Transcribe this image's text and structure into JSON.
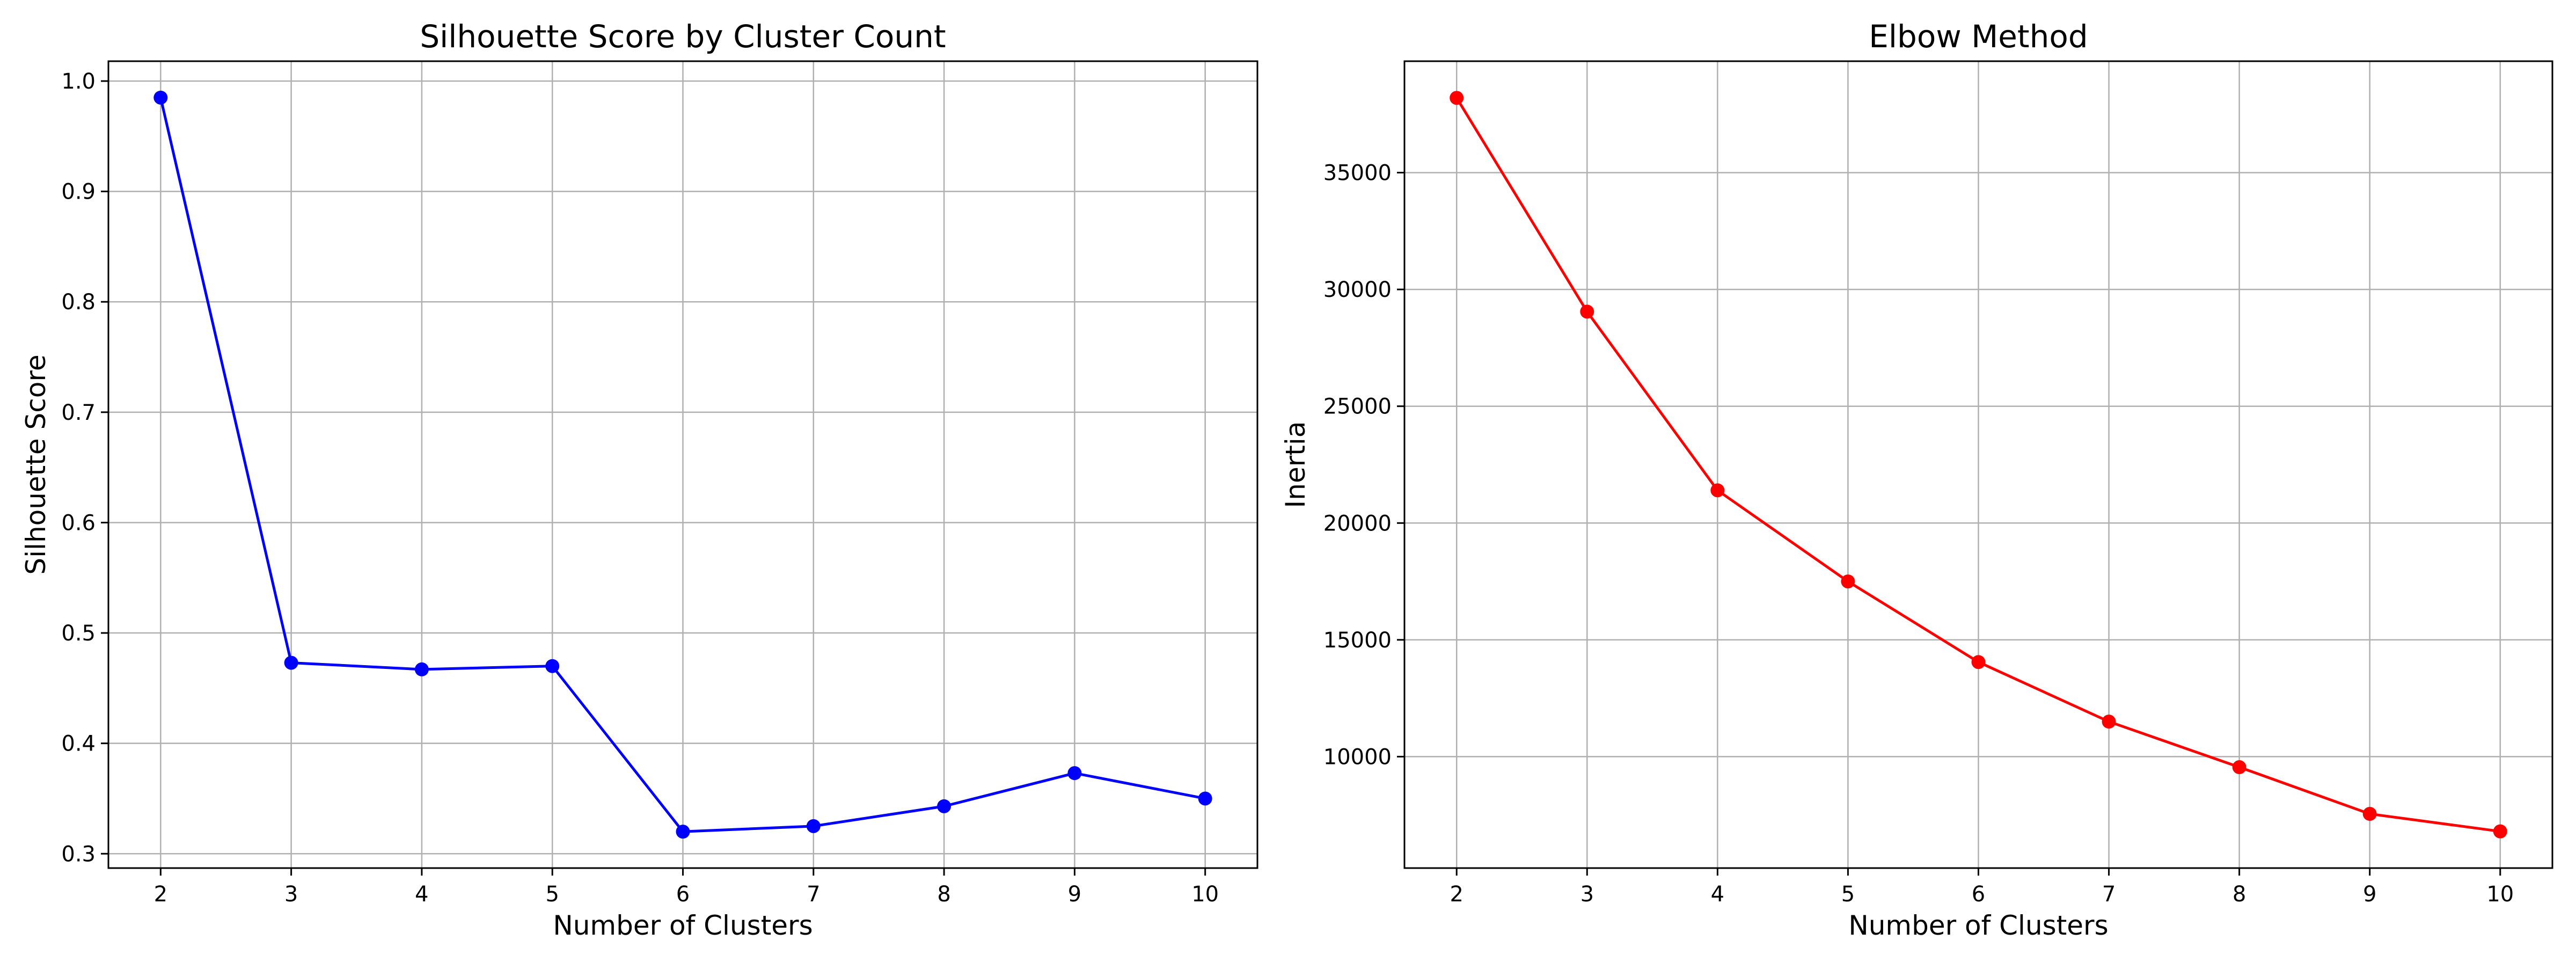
{
  "chart_data": [
    {
      "type": "line",
      "title": "Silhouette Score by Cluster Count",
      "xlabel": "Number of Clusters",
      "ylabel": "Silhouette Score",
      "x": [
        2,
        3,
        4,
        5,
        6,
        7,
        8,
        9,
        10
      ],
      "series": [
        {
          "values": [
            0.985,
            0.473,
            0.467,
            0.47,
            0.32,
            0.325,
            0.343,
            0.373,
            0.35
          ],
          "color": "#0000ff"
        }
      ],
      "xlim": [
        1.6,
        10.4
      ],
      "ylim": [
        0.287,
        1.018
      ],
      "xticks": [
        "2",
        "3",
        "4",
        "5",
        "6",
        "7",
        "8",
        "9",
        "10"
      ],
      "yticks": [
        "0.3",
        "0.4",
        "0.5",
        "0.6",
        "0.7",
        "0.8",
        "0.9",
        "1.0"
      ],
      "grid": true,
      "marker": "circle"
    },
    {
      "type": "line",
      "title": "Elbow Method",
      "xlabel": "Number of Clusters",
      "ylabel": "Inertia",
      "x": [
        2,
        3,
        4,
        5,
        6,
        7,
        8,
        9,
        10
      ],
      "series": [
        {
          "values": [
            38200,
            29050,
            21400,
            17500,
            14050,
            11500,
            9550,
            7550,
            6800
          ],
          "color": "#ff0000"
        }
      ],
      "xlim": [
        1.6,
        10.4
      ],
      "ylim": [
        5230,
        39770
      ],
      "xticks": [
        "2",
        "3",
        "4",
        "5",
        "6",
        "7",
        "8",
        "9",
        "10"
      ],
      "yticks": [
        "10000",
        "15000",
        "20000",
        "25000",
        "30000",
        "35000"
      ],
      "grid": true,
      "marker": "circle"
    }
  ]
}
